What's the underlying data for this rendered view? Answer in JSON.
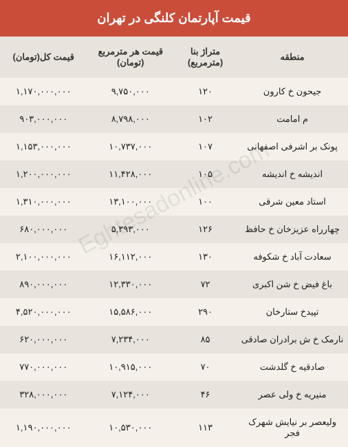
{
  "title": "قیمت آپارتمان کلنگی در تهران",
  "watermark": "Eghtesadonline.com",
  "columns": {
    "region": "منطقه",
    "area": "متراژ بنا (مترمربع)",
    "price_sqm": "قیمت هر مترمربع (تومان)",
    "price_total": "قیمت کل(تومان)"
  },
  "rows": [
    {
      "region": "جیحون خ کارون",
      "area": "۱۲۰",
      "price_sqm": "۹,۷۵۰,۰۰۰",
      "price_total": "۱,۱۷۰,۰۰۰,۰۰۰"
    },
    {
      "region": "م امامت",
      "area": "۱۰۲",
      "price_sqm": "۸,۷۹۸,۰۰۰",
      "price_total": "۹۰۳,۰۰۰,۰۰۰"
    },
    {
      "region": "پونک بر اشرفی اصفهانی",
      "area": "۱۰۷",
      "price_sqm": "۱۰,۷۳۷,۰۰۰",
      "price_total": "۱,۱۵۳,۰۰۰,۰۰۰"
    },
    {
      "region": "اندیشه خ اندیشه",
      "area": "۱۰۵",
      "price_sqm": "۱۱,۴۲۸,۰۰۰",
      "price_total": "۱,۲۰۰,۰۰۰,۰۰۰"
    },
    {
      "region": "استاد معین شرقی",
      "area": "۱۰۰",
      "price_sqm": "۱۳,۱۰۰,۰۰۰",
      "price_total": "۱,۳۱۰,۰۰۰,۰۰۰"
    },
    {
      "region": "چهارراه عزیزخان خ حافظ",
      "area": "۱۲۶",
      "price_sqm": "۵,۳۹۳,۰۰۰",
      "price_total": "۶۸۰,۰۰۰,۰۰۰"
    },
    {
      "region": "سعادت آباد خ شکوفه",
      "area": "۱۳۰",
      "price_sqm": "۱۶,۱۱۲,۰۰۰",
      "price_total": "۲,۱۰۰,۰۰۰,۰۰۰"
    },
    {
      "region": "باغ فیض خ شن اکبری",
      "area": "۷۲",
      "price_sqm": "۱۲,۳۳۰,۰۰۰",
      "price_total": "۸۹۰,۰۰۰,۰۰۰"
    },
    {
      "region": "تپیدخ ستارخان",
      "area": "۲۹۰",
      "price_sqm": "۱۵,۵۸۶,۰۰۰",
      "price_total": "۴,۵۲۰,۰۰۰,۰۰۰"
    },
    {
      "region": "نارمک خ ش برادران صادقی",
      "area": "۸۵",
      "price_sqm": "۷,۲۳۴,۰۰۰",
      "price_total": "۶۲۰,۰۰۰,۰۰۰"
    },
    {
      "region": "صادقیه خ گلدشت",
      "area": "۷۰",
      "price_sqm": "۱۰,۹۱۵,۰۰۰",
      "price_total": "۷۷۰,۰۰۰,۰۰۰"
    },
    {
      "region": "منیریه خ ولی عصر",
      "area": "۴۶",
      "price_sqm": "۷,۱۲۴,۰۰۰",
      "price_total": "۳۲۸,۰۰۰,۰۰۰"
    },
    {
      "region": "ولیعصر بر نیایش شهرک فجر",
      "area": "۱۱۳",
      "price_sqm": "۱۰,۵۳۰,۰۰۰",
      "price_total": "۱,۱۹۰,۰۰۰,۰۰۰"
    }
  ],
  "style": {
    "title_bg": "#ca4d3a",
    "title_color": "#ffffff",
    "header_bg": "#e8e3dc",
    "row_odd_bg": "#f5f0ea",
    "row_even_bg": "#e8e3dc",
    "text_color": "#222222",
    "title_fontsize": 18,
    "header_fontsize": 13,
    "cell_fontsize": 13
  }
}
